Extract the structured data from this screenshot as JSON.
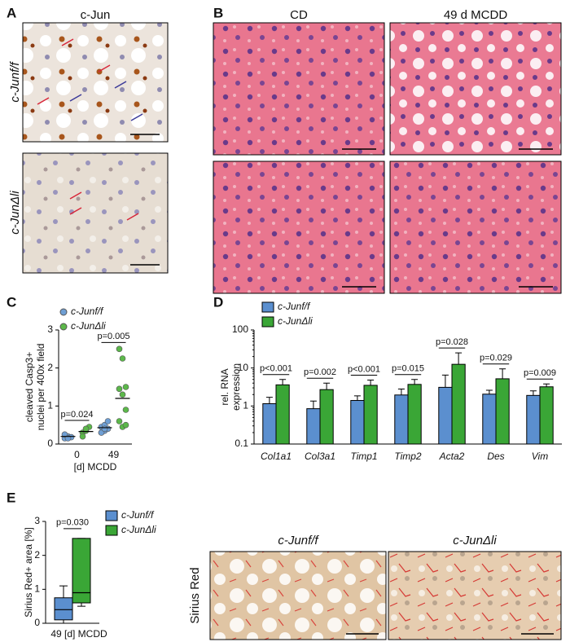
{
  "figure": {
    "panels": [
      "A",
      "B",
      "C",
      "D",
      "E"
    ],
    "a": {
      "title": "c-Jun",
      "rows": [
        "c-Junf/f",
        "c-JunΔli"
      ]
    },
    "b": {
      "columns": [
        "CD",
        "49 d MCDD"
      ]
    },
    "e": {
      "columns": [
        "c-Junf/f",
        "c-JunΔli"
      ],
      "row": "Sirius Red"
    }
  },
  "chart_data": [
    {
      "type": "dot",
      "ylabel": [
        "cleaved Casp3+",
        "nuclei per 400x field"
      ],
      "xlabel": "[d] MCDD",
      "categories": [
        "0",
        "49"
      ],
      "ylim": [
        0,
        3
      ],
      "yticks": [
        0,
        1,
        2,
        3
      ],
      "series": [
        {
          "name": "c-Junf/f",
          "color": "#6f9fd4",
          "values": [
            [
              0.15,
              0.2,
              0.18,
              0.25,
              0.15
            ],
            [
              0.3,
              0.35,
              0.4,
              0.45,
              0.5,
              0.6,
              0.3,
              0.4
            ]
          ],
          "means": [
            0.2,
            0.43
          ]
        },
        {
          "name": "c-JunΔli",
          "color": "#5cb84a",
          "values": [
            [
              0.3,
              0.35,
              0.45,
              0.2,
              0.4
            ],
            [
              2.5,
              2.25,
              1.5,
              1.45,
              1.3,
              0.9,
              0.6,
              0.45,
              0.5
            ]
          ],
          "means": [
            0.33,
            1.2
          ]
        }
      ],
      "annotations": [
        "p=0.024",
        "p=0.005"
      ]
    },
    {
      "type": "bar",
      "log": true,
      "ylabel": [
        "rel. RNA",
        "expression"
      ],
      "categories": [
        "Col1a1",
        "Col3a1",
        "Timp1",
        "Timp2",
        "Acta2",
        "Des",
        "Vim"
      ],
      "ylim": [
        0.1,
        100
      ],
      "yticks": [
        0.1,
        1,
        10,
        100
      ],
      "series": [
        {
          "name": "c-Junf/f",
          "color": "#5b8fcf",
          "values": [
            1.15,
            0.85,
            1.4,
            1.95,
            3.1,
            2.05,
            1.9
          ],
          "errors": [
            0.55,
            0.5,
            0.45,
            0.85,
            3.4,
            0.55,
            0.6
          ]
        },
        {
          "name": "c-JunΔli",
          "color": "#3aa636",
          "values": [
            3.6,
            2.7,
            3.5,
            3.7,
            12.5,
            5.2,
            3.2
          ],
          "errors": [
            1.4,
            1.3,
            1.3,
            1.3,
            12.5,
            4.3,
            0.6
          ]
        }
      ],
      "annotations": [
        "p<0.001",
        "p=0.002",
        "p<0.001",
        "p=0.015",
        "p=0.028",
        "p=0.029",
        "p=0.009"
      ]
    },
    {
      "type": "box",
      "ylabel": "Sirius Red+ area [%]",
      "xlabel": "49 [d] MCDD",
      "ylim": [
        0,
        3
      ],
      "yticks": [
        0,
        1,
        2,
        3
      ],
      "series": [
        {
          "name": "c-Junf/f",
          "color": "#5b8fcf",
          "min": 0,
          "q1": 0.1,
          "median": 0.4,
          "q3": 0.75,
          "max": 1.1
        },
        {
          "name": "c-JunΔli",
          "color": "#3aa636",
          "min": 0.5,
          "q1": 0.6,
          "median": 0.9,
          "q3": 2.5,
          "max": 2.5
        }
      ],
      "annotation": "p=0.030"
    }
  ]
}
